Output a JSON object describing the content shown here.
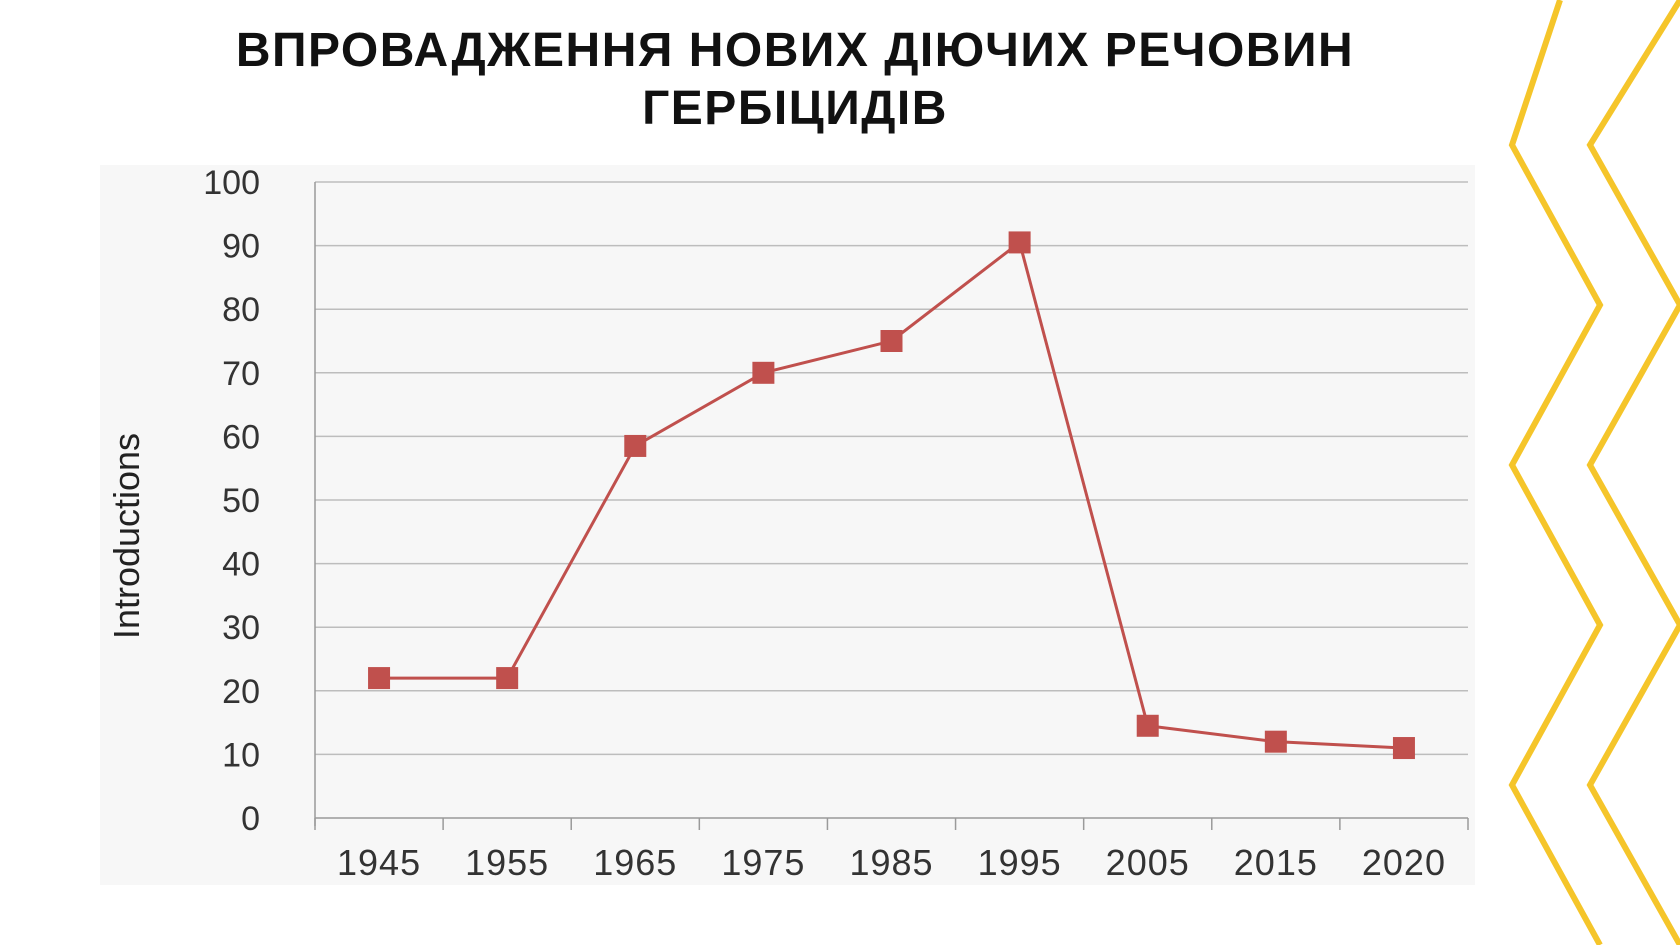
{
  "title": {
    "line1": "ВПРОВАДЖЕННЯ НОВИХ ДІЮЧИХ РЕЧОВИН",
    "line2": "ГЕРБІЦИДІВ"
  },
  "chart_data": {
    "type": "line",
    "ylabel": "Introductions",
    "xlabel": "",
    "categories": [
      "1945",
      "1955",
      "1965",
      "1975",
      "1985",
      "1995",
      "2005",
      "2015",
      "2020"
    ],
    "series": [
      {
        "values": [
          22,
          22,
          58.5,
          70,
          75,
          90.5,
          14.5,
          12,
          11
        ],
        "color": "#c0504d"
      }
    ],
    "ylim": [
      0,
      100
    ],
    "yticks": [
      0,
      10,
      20,
      30,
      40,
      50,
      60,
      70,
      80,
      90,
      100
    ],
    "grid": true,
    "legend": "none"
  },
  "decoration": {
    "zigzag_color": "#f5c52a",
    "icon": "yellow-zigzag-border"
  }
}
